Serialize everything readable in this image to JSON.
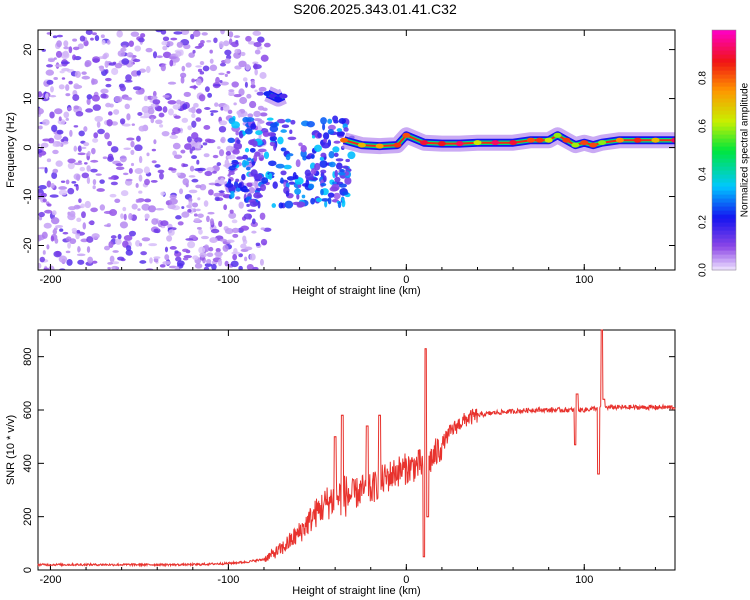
{
  "figure_title": "S206.2025.343.01.41.C32",
  "chart_data": [
    {
      "type": "heatmap",
      "title": "",
      "xlabel": "Height of straight line (km)",
      "ylabel": "Frequency (Hz)",
      "xlim": [
        -207,
        151
      ],
      "ylim": [
        -25,
        24
      ],
      "xticks": [
        -200,
        -100,
        0,
        100
      ],
      "yticks": [
        -20,
        -10,
        0,
        10,
        20
      ],
      "colorbar": {
        "label": "Normalized spectral amplitude",
        "range": [
          0,
          1
        ],
        "ticks": [
          "0.0",
          "0.2",
          "0.4",
          "0.6",
          "0.8"
        ]
      },
      "features": [
        {
          "name": "noise-scatter",
          "x_range": [
            -207,
            -78
          ],
          "y_range": [
            -25,
            24
          ],
          "amplitude": 0.07
        },
        {
          "name": "upper-branch",
          "x": [
            -78,
            -75,
            -72,
            -69
          ],
          "y": [
            11,
            10.5,
            10,
            10.5
          ],
          "amplitude": 0.25
        },
        {
          "name": "lower-cloud",
          "x_range": [
            -100,
            -30
          ],
          "y_range": [
            -12,
            6
          ],
          "amplitude": 0.2
        },
        {
          "name": "main-band",
          "x": [
            -35,
            -25,
            -15,
            -5,
            0,
            10,
            20,
            30,
            40,
            50,
            60,
            70,
            75,
            80,
            85,
            90,
            95,
            100,
            105,
            110,
            120,
            130,
            140,
            151
          ],
          "y": [
            1.5,
            0.5,
            0.3,
            0.5,
            2.5,
            1,
            0.8,
            0.8,
            1,
            1,
            1,
            1.5,
            1.5,
            1.5,
            2.5,
            1.5,
            0.5,
            1,
            0.5,
            1,
            1.5,
            1.5,
            1.5,
            1.5
          ],
          "amplitude": 0.95
        }
      ]
    },
    {
      "type": "line",
      "title": "",
      "xlabel": "Height of straight line (km)",
      "ylabel": "SNR (10 * v/v)",
      "xlim": [
        -207,
        151
      ],
      "ylim": [
        0,
        900
      ],
      "xticks": [
        -200,
        -100,
        0,
        100
      ],
      "yticks": [
        0,
        200,
        400,
        600,
        800
      ],
      "color": "#e8322d",
      "series": [
        {
          "name": "SNR",
          "x": [
            -207,
            -180,
            -160,
            -140,
            -120,
            -100,
            -90,
            -80,
            -75,
            -70,
            -65,
            -60,
            -55,
            -50,
            -45,
            -40,
            -35,
            -30,
            -25,
            -20,
            -15,
            -10,
            -5,
            0,
            5,
            10,
            15,
            20,
            25,
            30,
            35,
            40,
            50,
            60,
            70,
            80,
            90,
            100,
            110,
            120,
            130,
            140,
            151
          ],
          "y": [
            20,
            20,
            20,
            20,
            20,
            25,
            30,
            40,
            60,
            80,
            110,
            140,
            180,
            220,
            250,
            270,
            280,
            280,
            300,
            300,
            330,
            350,
            370,
            380,
            390,
            400,
            420,
            470,
            520,
            550,
            570,
            580,
            590,
            595,
            600,
            600,
            600,
            600,
            610,
            610,
            610,
            610,
            610
          ]
        },
        {
          "name": "spikes",
          "x": [
            -40,
            -36,
            -22,
            -15,
            10,
            11,
            12,
            95,
            96,
            108,
            110,
            111
          ],
          "y": [
            500,
            580,
            540,
            580,
            50,
            830,
            200,
            470,
            660,
            360,
            900,
            640
          ]
        }
      ]
    }
  ]
}
